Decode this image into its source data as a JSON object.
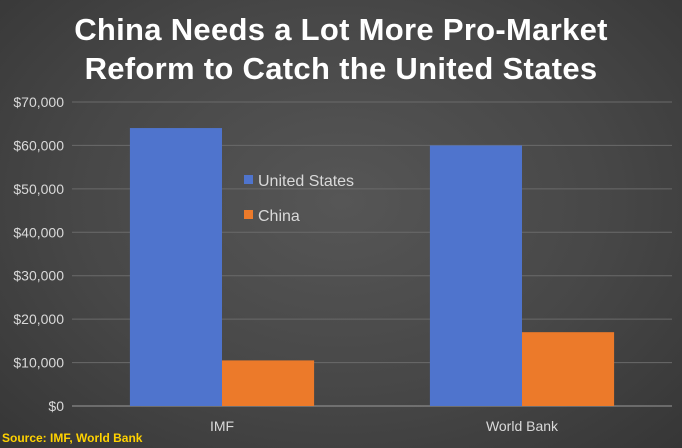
{
  "chart_data": {
    "type": "bar",
    "title": "China Needs a Lot More Pro-Market",
    "subtitle": "Reform to Catch the United States",
    "categories": [
      "IMF",
      "World Bank"
    ],
    "series": [
      {
        "name": "United States",
        "values": [
          64000,
          60000
        ],
        "color": "#4f74cd"
      },
      {
        "name": "China",
        "values": [
          10500,
          17000
        ],
        "color": "#ec7a2a"
      }
    ],
    "ylim": [
      0,
      70000
    ],
    "yticks": [
      0,
      10000,
      20000,
      30000,
      40000,
      50000,
      60000,
      70000
    ],
    "ytick_labels": [
      "$0",
      "$10,000",
      "$20,000",
      "$30,000",
      "$40,000",
      "$50,000",
      "$60,000",
      "$70,000"
    ],
    "grid": true,
    "legend": "inside, upper center",
    "source": "Source: IMF, World Bank"
  }
}
